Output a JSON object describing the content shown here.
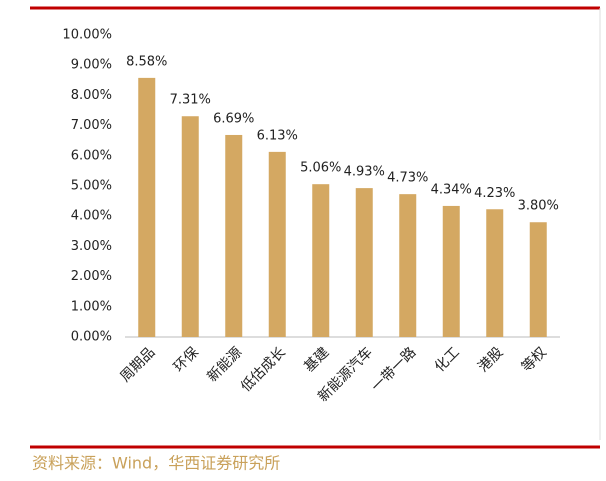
{
  "chart_data": {
    "type": "bar",
    "categories": [
      "周期品",
      "环保",
      "新能源",
      "低估成长",
      "基建",
      "新能源汽车",
      "一带一路",
      "化工",
      "港股",
      "等权"
    ],
    "values": [
      8.58,
      7.31,
      6.69,
      6.13,
      5.06,
      4.93,
      4.73,
      4.34,
      4.23,
      3.8
    ],
    "value_labels": [
      "8.58%",
      "7.31%",
      "6.69%",
      "6.13%",
      "5.06%",
      "4.93%",
      "4.73%",
      "4.34%",
      "4.23%",
      "3.80%"
    ],
    "color": "#d4a862",
    "ylim": [
      0,
      10
    ],
    "yticks": [
      {
        "value": 0,
        "label": "0.00%"
      },
      {
        "value": 1,
        "label": "1.00%"
      },
      {
        "value": 2,
        "label": "2.00%"
      },
      {
        "value": 3,
        "label": "3.00%"
      },
      {
        "value": 4,
        "label": "4.00%"
      },
      {
        "value": 5,
        "label": "5.00%"
      },
      {
        "value": 6,
        "label": "6.00%"
      },
      {
        "value": 7,
        "label": "7.00%"
      },
      {
        "value": 8,
        "label": "8.00%"
      },
      {
        "value": 9,
        "label": "9.00%"
      },
      {
        "value": 10,
        "label": "10.00%"
      }
    ],
    "grid": false,
    "source": "资料来源：Wind，华西证券研究所"
  }
}
